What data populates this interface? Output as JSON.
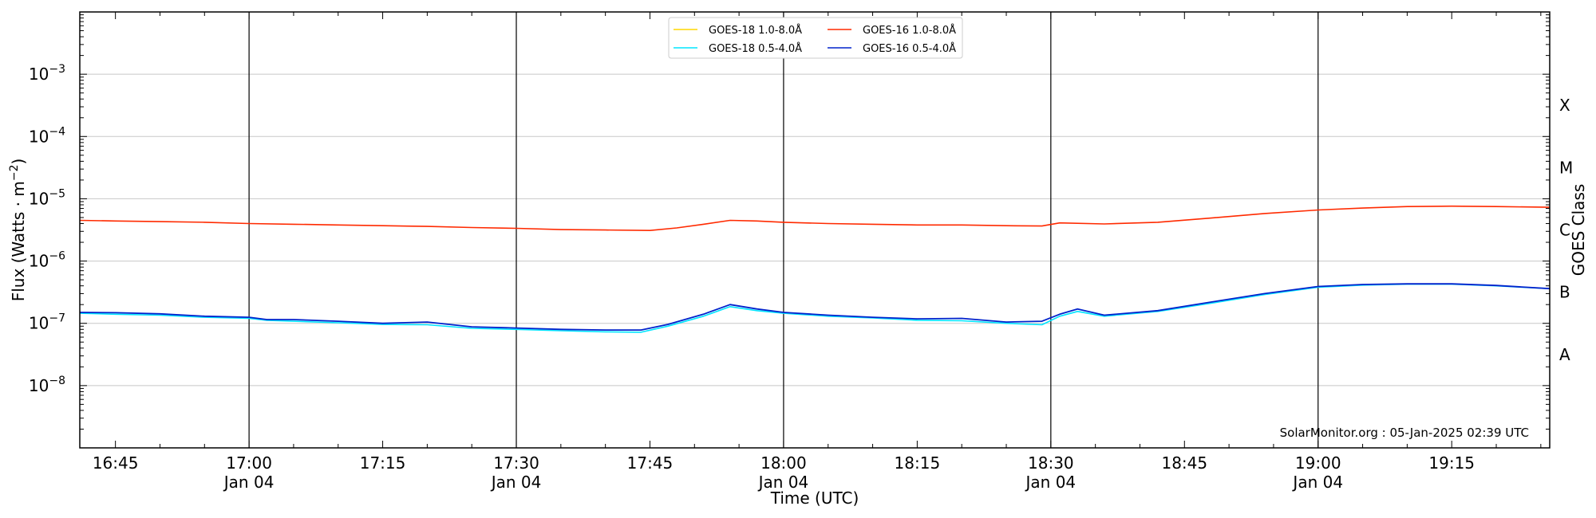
{
  "chart_data": {
    "type": "line",
    "title": "",
    "xlabel": "Time (UTC)",
    "ylabel": "Flux (Watts · m",
    "ylabel_sup": "−2",
    "ylabel_close": ")",
    "y2label": "GOES Class",
    "yscale": "log",
    "ylim": [
      1e-09,
      0.01
    ],
    "xlim": [
      "2025-01-04 16:41",
      "2025-01-04 19:26"
    ],
    "grid": "horizontal at decades 1e-8 to 1e-3; vertical lines at 30-minute marks",
    "legend_position": "top-center",
    "x_ticks": [
      {
        "time": "16:45",
        "day": ""
      },
      {
        "time": "17:00",
        "day": "Jan 04"
      },
      {
        "time": "17:15",
        "day": ""
      },
      {
        "time": "17:30",
        "day": "Jan 04"
      },
      {
        "time": "17:45",
        "day": ""
      },
      {
        "time": "18:00",
        "day": "Jan 04"
      },
      {
        "time": "18:15",
        "day": ""
      },
      {
        "time": "18:30",
        "day": "Jan 04"
      },
      {
        "time": "18:45",
        "day": ""
      },
      {
        "time": "19:00",
        "day": "Jan 04"
      },
      {
        "time": "19:15",
        "day": ""
      }
    ],
    "vertical_lines": [
      "17:00",
      "17:30",
      "18:00",
      "18:30",
      "19:00"
    ],
    "y_ticks": [
      {
        "base": "10",
        "exp": "−8",
        "value": 1e-08
      },
      {
        "base": "10",
        "exp": "−7",
        "value": 1e-07
      },
      {
        "base": "10",
        "exp": "−6",
        "value": 1e-06
      },
      {
        "base": "10",
        "exp": "−5",
        "value": 1e-05
      },
      {
        "base": "10",
        "exp": "−4",
        "value": 0.0001
      },
      {
        "base": "10",
        "exp": "−3",
        "value": 0.001
      }
    ],
    "goes_classes": [
      {
        "label": "A",
        "value": 3.162e-08
      },
      {
        "label": "B",
        "value": 3.162e-07
      },
      {
        "label": "C",
        "value": 3.162e-06
      },
      {
        "label": "M",
        "value": 3.162e-05
      },
      {
        "label": "X",
        "value": 0.0003162
      }
    ],
    "series": [
      {
        "name": "GOES-18 1.0-8.0Å",
        "color": "#ffd700",
        "x": [],
        "values": []
      },
      {
        "name": "GOES-16 1.0-8.0Å",
        "color": "#ff2a00",
        "x": [
          "16:41",
          "16:45",
          "16:50",
          "16:55",
          "17:00",
          "17:05",
          "17:10",
          "17:15",
          "17:20",
          "17:25",
          "17:30",
          "17:35",
          "17:40",
          "17:45",
          "17:48",
          "17:51",
          "17:54",
          "17:57",
          "18:00",
          "18:05",
          "18:10",
          "18:15",
          "18:20",
          "18:25",
          "18:29",
          "18:31",
          "18:36",
          "18:42",
          "18:48",
          "18:54",
          "19:00",
          "19:05",
          "19:10",
          "19:15",
          "19:20",
          "19:26"
        ],
        "values": [
          4.5e-06,
          4.4e-06,
          4.3e-06,
          4.2e-06,
          4e-06,
          3.9e-06,
          3.8e-06,
          3.7e-06,
          3.6e-06,
          3.45e-06,
          3.35e-06,
          3.2e-06,
          3.15e-06,
          3.1e-06,
          3.4e-06,
          3.9e-06,
          4.5e-06,
          4.4e-06,
          4.2e-06,
          4e-06,
          3.9e-06,
          3.8e-06,
          3.8e-06,
          3.7e-06,
          3.65e-06,
          4.1e-06,
          3.95e-06,
          4.2e-06,
          4.9e-06,
          5.8e-06,
          6.6e-06,
          7.1e-06,
          7.5e-06,
          7.6e-06,
          7.5e-06,
          7.3e-06
        ]
      },
      {
        "name": "GOES-18 0.5-4.0Å",
        "color": "#00e5ff",
        "x": [
          "16:41",
          "16:45",
          "16:50",
          "16:55",
          "17:00",
          "17:02",
          "17:05",
          "17:10",
          "17:15",
          "17:20",
          "17:25",
          "17:30",
          "17:35",
          "17:40",
          "17:44",
          "17:47",
          "17:51",
          "17:54",
          "17:57",
          "18:00",
          "18:05",
          "18:10",
          "18:15",
          "18:20",
          "18:25",
          "18:29",
          "18:31",
          "18:33",
          "18:36",
          "18:42",
          "18:48",
          "18:54",
          "19:00",
          "19:05",
          "19:10",
          "19:15",
          "19:20",
          "19:26"
        ],
        "values": [
          1.45e-07,
          1.4e-07,
          1.35e-07,
          1.25e-07,
          1.2e-07,
          1.12e-07,
          1.08e-07,
          1.02e-07,
          9.6e-08,
          9.5e-08,
          8.3e-08,
          8e-08,
          7.6e-08,
          7.3e-08,
          7.2e-08,
          9e-08,
          1.3e-07,
          1.85e-07,
          1.6e-07,
          1.45e-07,
          1.3e-07,
          1.22e-07,
          1.12e-07,
          1.1e-07,
          1e-07,
          9.5e-08,
          1.3e-07,
          1.55e-07,
          1.3e-07,
          1.55e-07,
          2.1e-07,
          2.9e-07,
          3.8e-07,
          4.1e-07,
          4.25e-07,
          4.25e-07,
          4e-07,
          3.6e-07
        ]
      },
      {
        "name": "GOES-16 0.5-4.0Å",
        "color": "#0022cc",
        "x": [
          "16:41",
          "16:45",
          "16:50",
          "16:55",
          "17:00",
          "17:02",
          "17:05",
          "17:10",
          "17:15",
          "17:20",
          "17:25",
          "17:30",
          "17:35",
          "17:40",
          "17:44",
          "17:47",
          "17:51",
          "17:54",
          "17:57",
          "18:00",
          "18:05",
          "18:10",
          "18:15",
          "18:20",
          "18:25",
          "18:29",
          "18:31",
          "18:33",
          "18:36",
          "18:42",
          "18:48",
          "18:54",
          "19:00",
          "19:05",
          "19:10",
          "19:15",
          "19:20",
          "19:26"
        ],
        "values": [
          1.5e-07,
          1.48e-07,
          1.42e-07,
          1.3e-07,
          1.25e-07,
          1.15e-07,
          1.15e-07,
          1.08e-07,
          1e-07,
          1.05e-07,
          8.8e-08,
          8.4e-08,
          8e-08,
          7.8e-08,
          7.8e-08,
          9.6e-08,
          1.4e-07,
          2e-07,
          1.7e-07,
          1.5e-07,
          1.35e-07,
          1.25e-07,
          1.18e-07,
          1.2e-07,
          1.05e-07,
          1.08e-07,
          1.4e-07,
          1.7e-07,
          1.35e-07,
          1.6e-07,
          2.2e-07,
          3e-07,
          3.9e-07,
          4.2e-07,
          4.3e-07,
          4.3e-07,
          4.05e-07,
          3.6e-07
        ]
      }
    ],
    "annotation": "SolarMonitor.org : 05-Jan-2025 02:39 UTC"
  }
}
